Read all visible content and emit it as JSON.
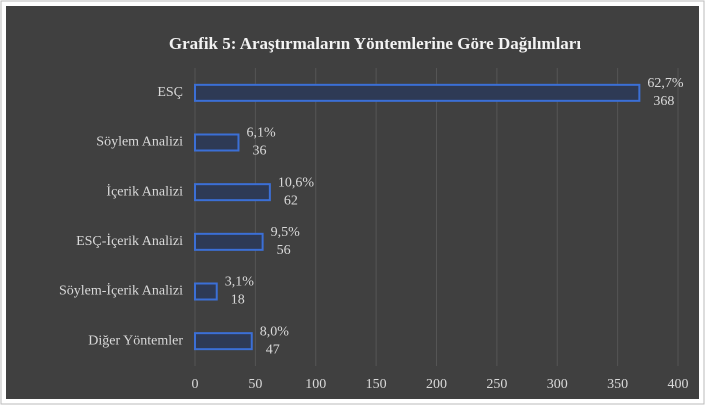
{
  "chart_data": {
    "type": "bar",
    "orientation": "horizontal",
    "title": "Grafik 5: Araştırmaların Yöntemlerine Göre Dağılımları",
    "categories": [
      "ESÇ",
      "Söylem Analizi",
      "İçerik Analizi",
      "ESÇ-İçerik Analizi",
      "Söylem-İçerik Analizi",
      "Diğer Yöntemler"
    ],
    "values": [
      368,
      36,
      62,
      56,
      18,
      47
    ],
    "percent_labels": [
      "62,7%",
      "6,1%",
      "10,6%",
      "9,5%",
      "3,1%",
      "8,0%"
    ],
    "color": "#2e3a55",
    "edge_color": "#3b6fd6",
    "xlim": [
      0,
      400
    ],
    "xticks": [
      0,
      50,
      100,
      150,
      200,
      250,
      300,
      350,
      400
    ],
    "grid": true
  }
}
